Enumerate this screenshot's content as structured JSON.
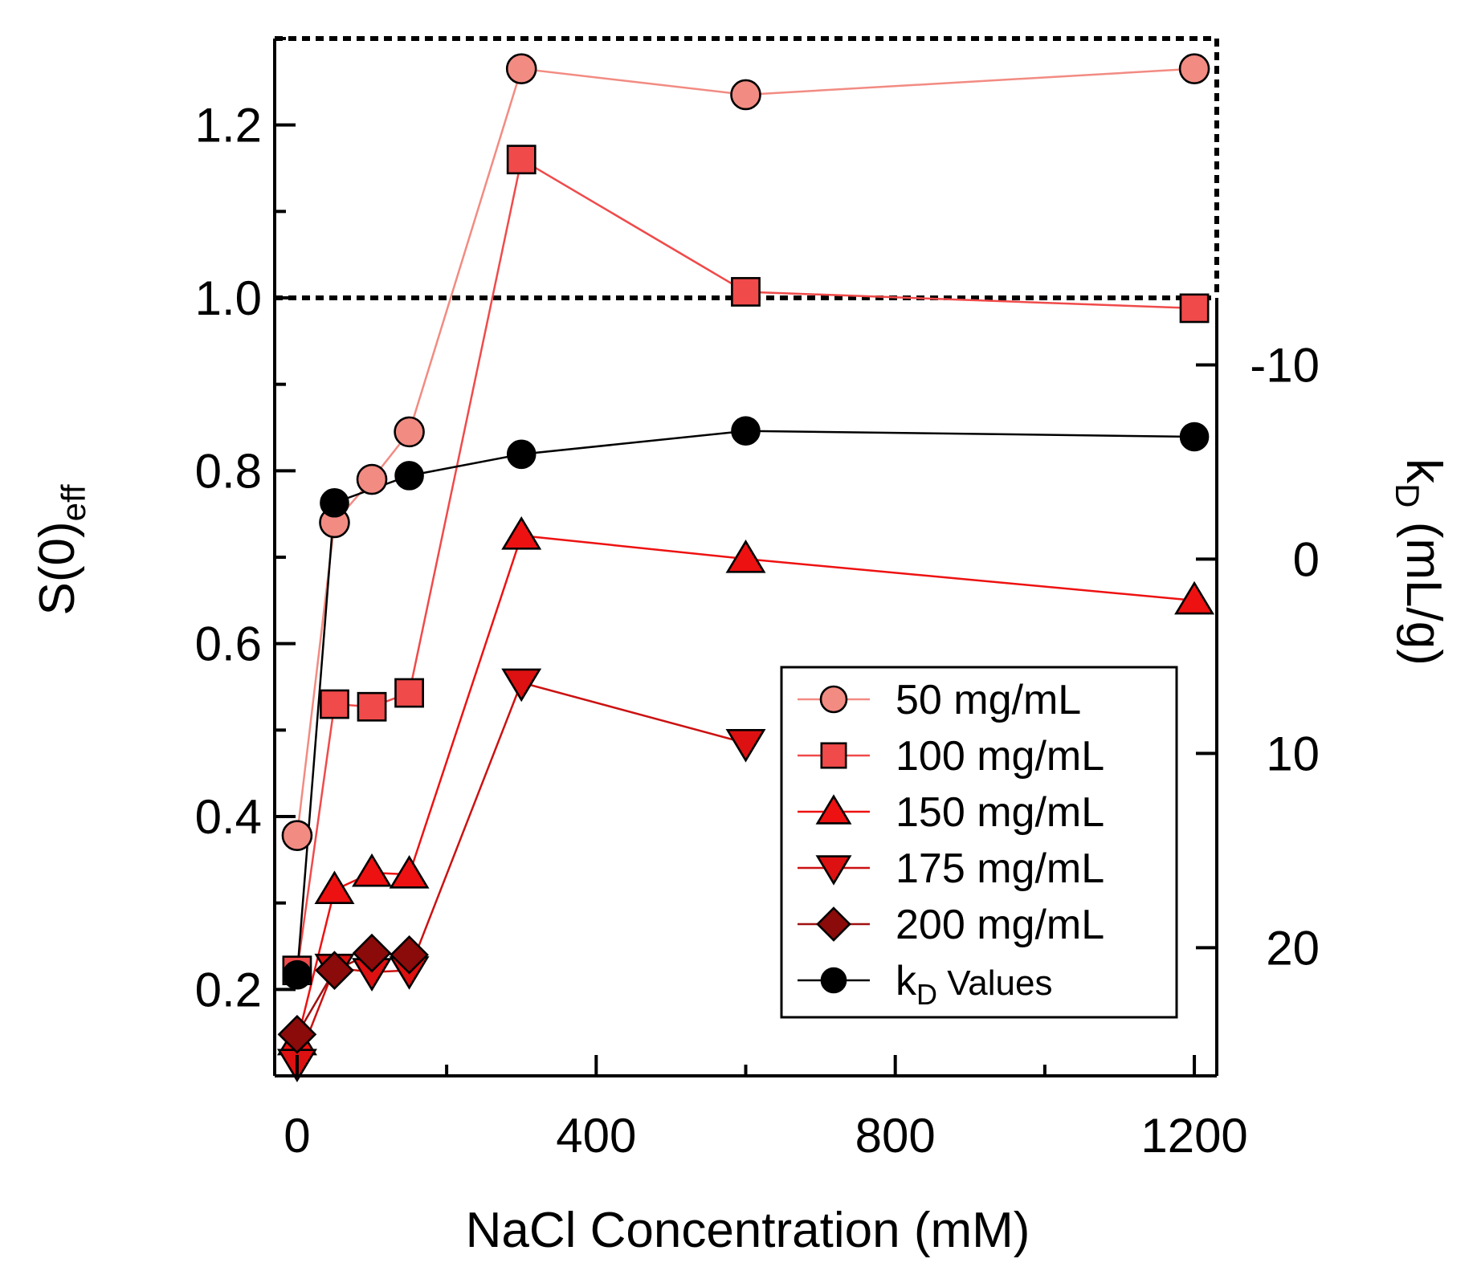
{
  "chart_data": {
    "type": "line",
    "xlabel": "NaCl Concentration (mM)",
    "ylabel": {
      "main": "S(0)",
      "sub": "eff"
    },
    "y2label": {
      "main": "k",
      "sub": "D",
      "rest": " (mL/g)"
    },
    "xlim": [
      -30,
      1230
    ],
    "ylim": [
      0.1,
      1.3
    ],
    "y2lim": [
      26.6,
      -26.8
    ],
    "x_ticks": [
      0,
      400,
      800,
      1200
    ],
    "x_minor_ticks": [
      200,
      600,
      1000
    ],
    "y_ticks": [
      0.2,
      0.4,
      0.6,
      0.8,
      1.0,
      1.2
    ],
    "y_tick_labels": [
      "0.2",
      "0.4",
      "0.6",
      "0.8",
      "1.0",
      "1.2"
    ],
    "y2_ticks": [
      -10,
      0,
      10,
      20
    ],
    "y2_tick_labels": [
      "-10",
      "0",
      "10",
      "20"
    ],
    "reference_line": {
      "y": 1.0,
      "style": "dotted"
    },
    "legend_position": "bottom-right",
    "series": [
      {
        "name": "50 mg/mL",
        "marker": "circle",
        "color": "#f28b82",
        "line_color": "#f28b82",
        "axis": "left",
        "x": [
          0,
          50,
          100,
          150,
          300,
          600,
          1200
        ],
        "y": [
          0.378,
          0.74,
          0.79,
          0.845,
          1.265,
          1.235,
          1.265
        ]
      },
      {
        "name": "100 mg/mL",
        "marker": "square",
        "color": "#f04a4a",
        "line_color": "#f04a4a",
        "axis": "left",
        "x": [
          0,
          50,
          100,
          150,
          300,
          600,
          1200
        ],
        "y": [
          0.222,
          0.53,
          0.527,
          0.543,
          1.16,
          1.007,
          0.988
        ]
      },
      {
        "name": "150 mg/mL",
        "marker": "triangle-up",
        "color": "#ee1111",
        "line_color": "#ee1111",
        "axis": "left",
        "x": [
          0,
          50,
          100,
          150,
          300,
          600,
          1200
        ],
        "y": [
          0.14,
          0.315,
          0.335,
          0.333,
          0.725,
          0.698,
          0.65
        ]
      },
      {
        "name": "175 mg/mL",
        "marker": "triangle-down",
        "color": "#dd1111",
        "line_color": "#cc1111",
        "axis": "left",
        "x": [
          0,
          50,
          100,
          150,
          300,
          600,
          1200
        ],
        "y": [
          0.115,
          0.225,
          0.22,
          0.222,
          0.555,
          0.485,
          null
        ]
      },
      {
        "name": "200 mg/mL",
        "marker": "diamond",
        "color": "#8b0a0a",
        "line_color": "#a01010",
        "axis": "left",
        "x": [
          0,
          50,
          100,
          150
        ],
        "y": [
          0.148,
          0.222,
          0.242,
          0.24
        ]
      },
      {
        "name": "k",
        "name_sub": "D",
        "name_rest": " Values",
        "marker": "filled-circle",
        "color": "#000000",
        "line_color": "#000000",
        "axis": "right",
        "x": [
          0,
          50,
          150,
          300,
          600,
          1200
        ],
        "y": [
          21.4,
          -2.9,
          -4.3,
          -5.4,
          -6.6,
          -6.3
        ]
      }
    ]
  }
}
